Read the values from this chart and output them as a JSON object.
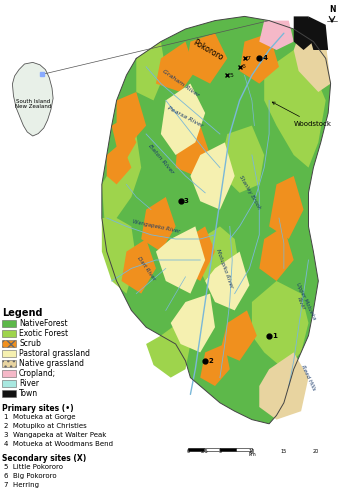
{
  "figure_size": [
    3.43,
    5.0
  ],
  "dpi": 100,
  "background_color": "#ffffff",
  "map_bg": "#ffffff",
  "legend_items": [
    {
      "label": "NativeForest",
      "color": "#5db84a",
      "type": "patch"
    },
    {
      "label": "Exotic Forest",
      "color": "#9ed44c",
      "type": "patch"
    },
    {
      "label": "Scrub",
      "color": "#f0901e",
      "type": "patch_hatch"
    },
    {
      "label": "Pastoral grassland",
      "color": "#f5f0b0",
      "type": "patch"
    },
    {
      "label": "Native grassland",
      "color": "#e8d4a0",
      "type": "patch_hatch2"
    },
    {
      "label": "Cropland;",
      "color": "#f5b8c8",
      "type": "patch"
    },
    {
      "label": "River",
      "color": "#a8e8e0",
      "type": "patch"
    },
    {
      "label": "Town",
      "color": "#111111",
      "type": "square"
    }
  ],
  "primary_sites_label": "Primary sites (•)",
  "primary_sites": [
    "1  Motueka at Gorge",
    "2  Motupiko at Christies",
    "3  Wangapeka at Walter Peak",
    "4  Motueka at Woodmans Bend"
  ],
  "secondary_sites_label": "Secondary sites (X)",
  "secondary_sites": [
    "5  Little Pokororo",
    "6  Big Pokororo",
    "7  Herring"
  ],
  "legend_title": "Legend"
}
